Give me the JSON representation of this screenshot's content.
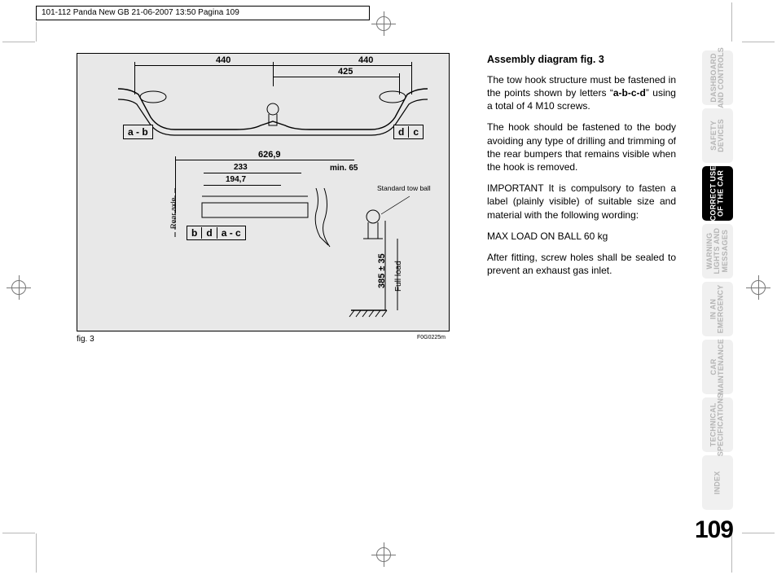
{
  "header": {
    "text": "101-112 Panda New GB  21-06-2007  13:50  Pagina 109"
  },
  "crop": {
    "color": "#b8b8b8"
  },
  "figure": {
    "label": "fig. 3",
    "id": "F0G0225m",
    "bg": "#e8e8e8",
    "dimensions": {
      "top_left_span": "440",
      "top_right_span": "440",
      "sub_span": "425",
      "mid_span": "626,9",
      "span_233": "233",
      "span_1947": "194,7",
      "min_right": "min. 65",
      "vert_main": "385 ± 35",
      "full_load": "Full load"
    },
    "labels": {
      "rear_axle": "Rear axle",
      "std_ball": "Standard tow ball",
      "ab": "a - b",
      "d": "d",
      "c": "c",
      "b": "b",
      "d2": "d",
      "ac": "a - c"
    }
  },
  "text": {
    "heading": "Assembly diagram fig. 3",
    "p1a": "The tow hook structure must be fastened in the points shown by letters “",
    "p1b": "a-b-c-d",
    "p1c": "” using a total of 4 M10 screws.",
    "p2": "The hook should be fastened to the body avoiding any type of drilling and trimming of the rear bumpers that remains visible when the hook is removed.",
    "p3": "IMPORTANT It is compulsory to fasten a label (plainly visible) of suitable size and material with the following wording:",
    "p4": "MAX LOAD ON BALL 60 kg",
    "p5": "After fitting, screw holes shall be sealed to prevent an exhaust gas inlet."
  },
  "tabs": [
    {
      "label": "DASHBOARD<br>AND CONTROLS",
      "active": false
    },
    {
      "label": "SAFETY<br>DEVICES",
      "active": false
    },
    {
      "label": "CORRECT USE<br>OF THE CAR",
      "active": true
    },
    {
      "label": "WARNING<br>LIGHTS AND<br>MESSAGES",
      "active": false
    },
    {
      "label": "IN AN<br>EMERGENCY",
      "active": false
    },
    {
      "label": "CAR<br>MAINTENANCE",
      "active": false
    },
    {
      "label": "TECHNICAL<br>SPECIFICATIONS",
      "active": false
    },
    {
      "label": "INDEX",
      "active": false
    }
  ],
  "page_number": "109"
}
